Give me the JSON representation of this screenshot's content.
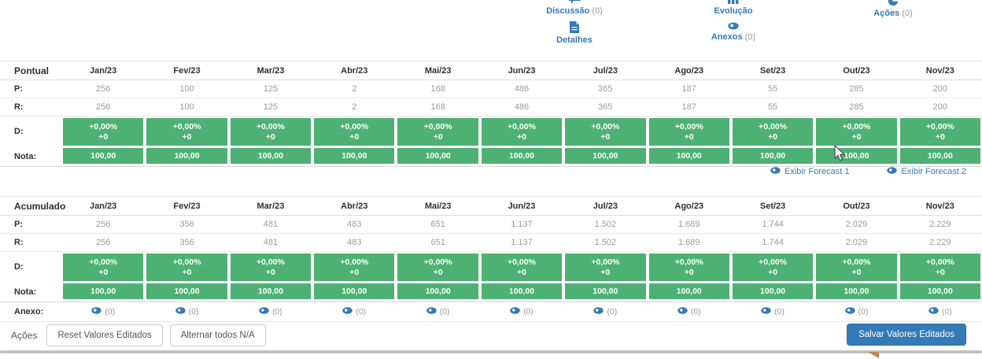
{
  "colors": {
    "accent_green": "#4cb173",
    "accent_blue": "#337ab7"
  },
  "header_actions": [
    {
      "id": "discussao",
      "icon": "comment-icon",
      "label": "Discussão",
      "count": "(0)"
    },
    {
      "id": "evolucao",
      "icon": "bar-chart-icon",
      "label": "Evolução",
      "count": ""
    },
    {
      "id": "acoes",
      "icon": "pie-chart-icon",
      "label": "Ações",
      "count": "(0)"
    },
    {
      "id": "detalhes",
      "icon": "file-icon",
      "label": "Detalhes",
      "count": ""
    },
    {
      "id": "anexos",
      "icon": "eye-icon",
      "label": "Anexos",
      "count": "(0)"
    }
  ],
  "months": [
    "Jan/23",
    "Fev/23",
    "Mar/23",
    "Abr/23",
    "Mai/23",
    "Jun/23",
    "Jul/23",
    "Ago/23",
    "Set/23",
    "Out/23",
    "Nov/23"
  ],
  "tables": [
    {
      "title": "Pontual",
      "p_label": "P:",
      "r_label": "R:",
      "d_label": "D:",
      "nota_label": "Nota:",
      "p": [
        "256",
        "100",
        "125",
        "2",
        "168",
        "486",
        "365",
        "187",
        "55",
        "285",
        "200"
      ],
      "r": [
        "256",
        "100",
        "125",
        "2",
        "168",
        "486",
        "365",
        "187",
        "55",
        "285",
        "200"
      ],
      "d_percent": "+0,00%",
      "d_abs": "+0",
      "nota": "100,00"
    },
    {
      "title": "Acumulado",
      "p_label": "P:",
      "r_label": "R:",
      "d_label": "D:",
      "nota_label": "Nota:",
      "p": [
        "256",
        "356",
        "481",
        "483",
        "651",
        "1.137",
        "1.502",
        "1.689",
        "1.744",
        "2.029",
        "2.229"
      ],
      "r": [
        "256",
        "356",
        "481",
        "483",
        "651",
        "1.137",
        "1.502",
        "1.689",
        "1.744",
        "2.029",
        "2.229"
      ],
      "d_percent": "+0,00%",
      "d_abs": "+0",
      "nota": "100,00"
    }
  ],
  "forecast_links": [
    {
      "label": "Exibir Forecast 1"
    },
    {
      "label": "Exibir Forecast 2"
    }
  ],
  "anexo_row": {
    "label": "Anexo:",
    "count": "(0)"
  },
  "footer": {
    "acoes_label": "Ações",
    "reset_button": "Reset Valores Editados",
    "toggle_button": "Alternar todos N/A",
    "save_button": "Salvar Valores Editados"
  }
}
